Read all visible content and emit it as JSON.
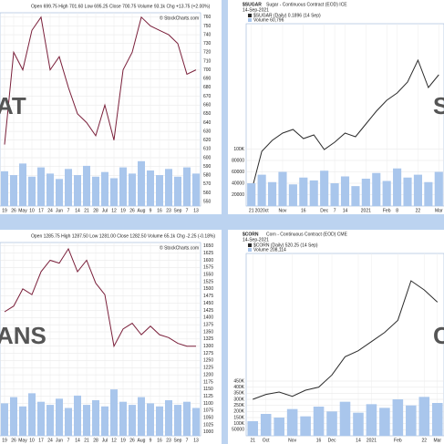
{
  "chart_data": [
    {
      "type": "line",
      "header": "Open 699.75 High 701.60 Low 695.25 Close 700.75 Volume 93.1k Chg +13.75 (+2.00%)",
      "watermark": "© StockCharts.com",
      "big_label": "AT",
      "categories": [
        "19",
        "26",
        "May",
        "10",
        "17",
        "24",
        "Jun",
        "7",
        "14",
        "21",
        "28",
        "Jul",
        "12",
        "19",
        "26",
        "Aug",
        "9",
        "16",
        "23",
        "Sep",
        "7",
        "13"
      ],
      "series": [
        {
          "color": "#7a1f3a",
          "values": [
            615,
            720,
            700,
            745,
            760,
            700,
            715,
            680,
            650,
            640,
            625,
            660,
            620,
            700,
            720,
            760,
            750,
            745,
            740,
            730,
            695,
            700
          ]
        },
        {
          "color": "#a9c6ec",
          "axis": "y2",
          "values": [
            45,
            40,
            55,
            38,
            50,
            42,
            35,
            48,
            40,
            52,
            38,
            44,
            36,
            50,
            42,
            58,
            46,
            40,
            48,
            38,
            50,
            42
          ]
        }
      ],
      "ylim": [
        545,
        765
      ],
      "yticks": [
        550,
        560,
        570,
        580,
        590,
        600,
        610,
        620,
        630,
        640,
        650,
        660,
        670,
        680,
        690,
        700,
        710,
        720,
        730,
        740,
        750,
        760
      ],
      "y2lim": [
        0,
        250
      ],
      "grid": true
    },
    {
      "type": "line",
      "title": "$SUGAR",
      "subtitle": "Sugar - Continuous Contract (EOD) ICE",
      "date": "14-Sep-2021",
      "big_label": "S",
      "categories": [
        "21",
        "2020ct",
        null,
        "Nov",
        null,
        "16",
        null,
        "Dec",
        "7",
        "14",
        null,
        "2021",
        null,
        "Feb",
        "8",
        null,
        "22",
        null,
        "Mar"
      ],
      "series": [
        {
          "name": "$SUGAR (Daily) 0.1896 (14 Sep)",
          "color": "#2b2b2b",
          "values": [
            0.118,
            0.14,
            0.146,
            0.15,
            0.152,
            0.147,
            0.149,
            0.141,
            0.145,
            0.15,
            0.148,
            0.155,
            0.162,
            0.168,
            0.172,
            0.178,
            0.19,
            0.175,
            0.182
          ]
        },
        {
          "name": "Volume 60,796",
          "color": "#a9c6ec",
          "axis": "y2",
          "values": [
            40000,
            55000,
            42000,
            60000,
            38000,
            50000,
            45000,
            62000,
            40000,
            52000,
            35000,
            48000,
            58000,
            44000,
            66000,
            50000,
            55000,
            42000,
            60000
          ]
        }
      ],
      "ylim": [
        0.11,
        0.21
      ],
      "y2lim": [
        0,
        320000
      ],
      "y2ticks": [
        20000,
        40000,
        60000,
        80000,
        {
          "value": 100000,
          "label": "100K"
        }
      ],
      "grid": true
    },
    {
      "type": "line",
      "header": "Open 1285.75 High 1287.50 Low 1281.00 Close 1282.50 Volume 65.1k Chg -2.25 (-0.18%)",
      "watermark": "© StockCharts.com",
      "big_label": "ANS",
      "categories": [
        "19",
        "26",
        "May",
        "10",
        "17",
        "24",
        "Jun",
        "7",
        "14",
        "21",
        "28",
        "Jul",
        "12",
        "19",
        "26",
        "Aug",
        "9",
        "16",
        "23",
        "Sep",
        "7",
        "13"
      ],
      "series": [
        {
          "color": "#7a1f3a",
          "values": [
            1420,
            1440,
            1500,
            1480,
            1560,
            1600,
            1590,
            1640,
            1560,
            1600,
            1520,
            1480,
            1300,
            1360,
            1380,
            1340,
            1370,
            1340,
            1330,
            1310,
            1300,
            1300
          ]
        },
        {
          "color": "#a9c6ec",
          "axis": "y2",
          "values": [
            42,
            50,
            38,
            55,
            44,
            40,
            48,
            36,
            52,
            40,
            46,
            38,
            60,
            44,
            40,
            50,
            42,
            38,
            46,
            40,
            44,
            36
          ]
        }
      ],
      "ylim": [
        987,
        1662
      ],
      "yticks": [
        1000,
        1025,
        1050,
        1075,
        1100,
        1125,
        1150,
        1175,
        1200,
        1225,
        1250,
        1275,
        1300,
        1325,
        1350,
        1375,
        1400,
        1425,
        1450,
        1475,
        1500,
        1525,
        1550,
        1575,
        1600,
        1625,
        1650
      ],
      "y2lim": [
        0,
        250
      ],
      "grid": true
    },
    {
      "type": "line",
      "title": "$CORN",
      "subtitle": "Corn - Continuous Contract (EOD) CME",
      "date": "14-Sep-2021",
      "big_label": "C",
      "categories": [
        "21",
        "Oct",
        null,
        "Nov",
        null,
        "16",
        "Dec",
        null,
        "14",
        "2021",
        null,
        "Feb",
        null,
        "22",
        "Mar"
      ],
      "series": [
        {
          "name": "$CORN (Daily) 520.25 (14 Sep)",
          "color": "#2b2b2b",
          "values": [
            360,
            368,
            372,
            365,
            375,
            380,
            400,
            430,
            440,
            455,
            470,
            490,
            555,
            540,
            520
          ]
        },
        {
          "name": "Volume 208,114",
          "color": "#a9c6ec",
          "axis": "y2",
          "values": [
            120000,
            180000,
            150000,
            220000,
            160000,
            240000,
            200000,
            280000,
            190000,
            260000,
            230000,
            300000,
            250000,
            320000,
            270000
          ]
        }
      ],
      "ylim": [
        300,
        600
      ],
      "y2lim": [
        0,
        1500000
      ],
      "y2ticks": [
        50000,
        {
          "value": 100000,
          "label": "100K"
        },
        {
          "value": 150000,
          "label": "150K"
        },
        {
          "value": 200000,
          "label": "200K"
        },
        {
          "value": 250000,
          "label": "250K"
        },
        {
          "value": 300000,
          "label": "300K"
        },
        {
          "value": 350000,
          "label": "350K"
        },
        {
          "value": 400000,
          "label": "400K"
        },
        {
          "value": 450000,
          "label": "450K"
        }
      ],
      "grid": true
    }
  ]
}
